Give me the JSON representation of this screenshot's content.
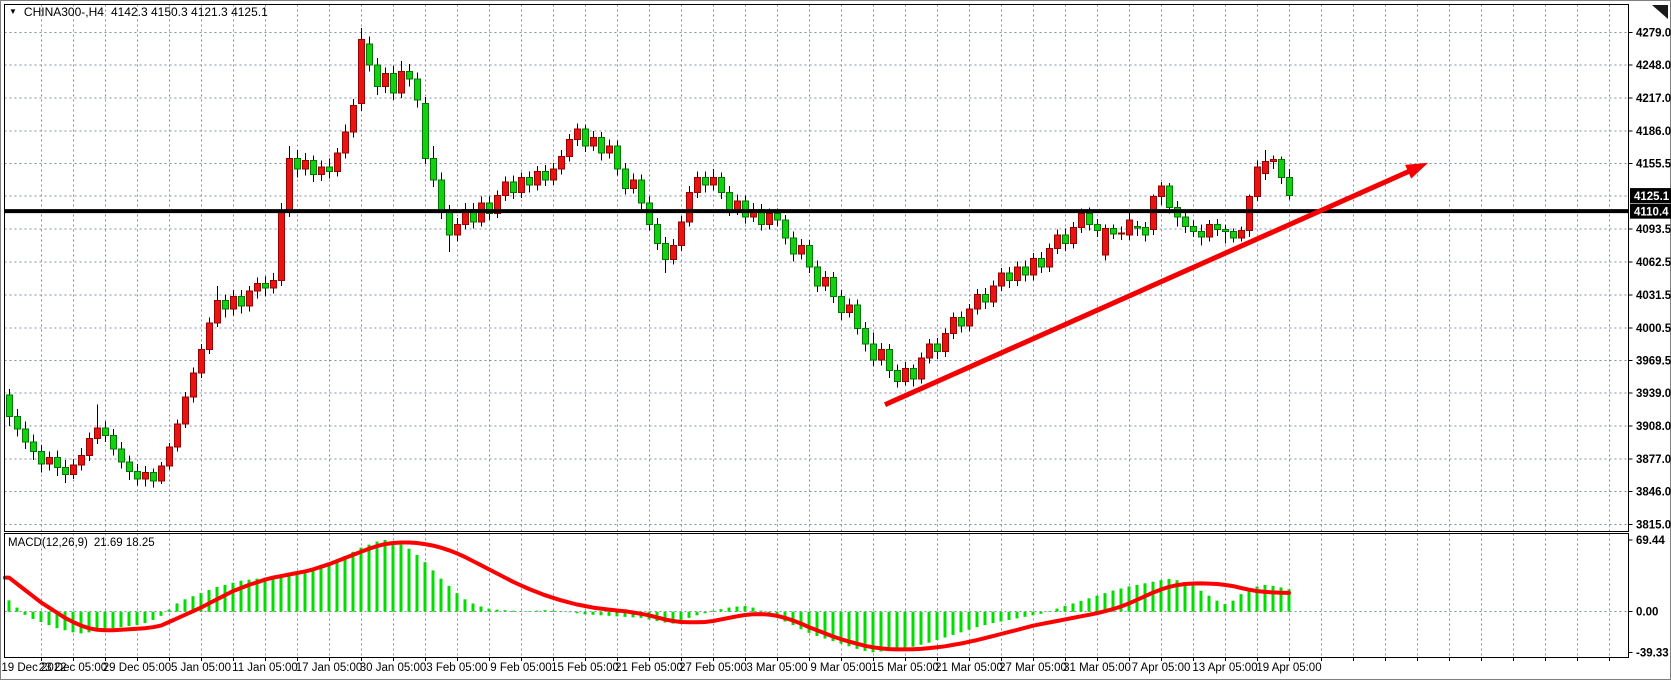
{
  "chart": {
    "dropdown_icon": "▼",
    "title_text": "CHINA300-,H4",
    "ohlc_text": "4142.3 4150.3 4121.3 4125.1"
  },
  "macd_panel": {
    "label": "MACD(12,26,9)",
    "values_text": "21.69 18.25"
  },
  "chart_data": {
    "type": "candlestick",
    "symbol": "CHINA300-",
    "timeframe": "H4",
    "last_open": 4142.3,
    "last_high": 4150.3,
    "last_low": 4121.3,
    "last_close": 4125.1,
    "current_price": 4125.1,
    "hline_price": 4110.4,
    "price_ticks": [
      4279.0,
      4248.0,
      4217.0,
      4186.0,
      4155.5,
      4093.5,
      4062.5,
      4031.5,
      4000.5,
      3969.5,
      3939.0,
      3908.0,
      3877.0,
      3846.0,
      3815.0
    ],
    "extra_gridline_price": 4124.5,
    "x_labels": [
      "19 Dec 2022",
      "23 Dec 05:00",
      "29 Dec 05:00",
      "5 Jan 05:00",
      "11 Jan 05:00",
      "17 Jan 05:00",
      "30 Jan 05:00",
      "3 Feb 05:00",
      "9 Feb 05:00",
      "15 Feb 05:00",
      "21 Feb 05:00",
      "27 Feb 05:00",
      "3 Mar 05:00",
      "9 Mar 05:00",
      "15 Mar 05:00",
      "21 Mar 05:00",
      "27 Mar 05:00",
      "31 Mar 05:00",
      "7 Apr 05:00",
      "13 Apr 05:00",
      "19 Apr 05:00"
    ],
    "candles": [
      [
        3937,
        3943,
        3908,
        3917
      ],
      [
        3917,
        3924,
        3898,
        3905
      ],
      [
        3905,
        3912,
        3886,
        3893
      ],
      [
        3893,
        3900,
        3876,
        3884
      ],
      [
        3884,
        3890,
        3864,
        3872
      ],
      [
        3872,
        3884,
        3866,
        3878
      ],
      [
        3878,
        3885,
        3861,
        3869
      ],
      [
        3869,
        3876,
        3854,
        3862
      ],
      [
        3862,
        3877,
        3858,
        3871
      ],
      [
        3871,
        3887,
        3866,
        3880
      ],
      [
        3880,
        3902,
        3875,
        3896
      ],
      [
        3896,
        3928,
        3891,
        3906
      ],
      [
        3906,
        3912,
        3893,
        3899
      ],
      [
        3899,
        3905,
        3880,
        3886
      ],
      [
        3886,
        3893,
        3868,
        3874
      ],
      [
        3874,
        3880,
        3857,
        3865
      ],
      [
        3865,
        3872,
        3852,
        3858
      ],
      [
        3858,
        3870,
        3851,
        3864
      ],
      [
        3864,
        3868,
        3850,
        3856
      ],
      [
        3856,
        3874,
        3853,
        3870
      ],
      [
        3870,
        3892,
        3867,
        3888
      ],
      [
        3888,
        3914,
        3884,
        3910
      ],
      [
        3910,
        3940,
        3906,
        3935
      ],
      [
        3935,
        3963,
        3930,
        3958
      ],
      [
        3958,
        3985,
        3953,
        3980
      ],
      [
        3980,
        4010,
        3976,
        4005
      ],
      [
        4005,
        4040,
        4001,
        4026
      ],
      [
        4026,
        4032,
        4010,
        4018
      ],
      [
        4018,
        4036,
        4012,
        4030
      ],
      [
        4030,
        4036,
        4014,
        4021
      ],
      [
        4021,
        4040,
        4016,
        4035
      ],
      [
        4035,
        4048,
        4028,
        4042
      ],
      [
        4042,
        4049,
        4030,
        4038
      ],
      [
        4038,
        4052,
        4033,
        4045
      ],
      [
        4045,
        4118,
        4040,
        4110
      ],
      [
        4110,
        4172,
        4105,
        4160
      ],
      [
        4160,
        4168,
        4142,
        4150
      ],
      [
        4150,
        4165,
        4144,
        4158
      ],
      [
        4158,
        4163,
        4138,
        4145
      ],
      [
        4145,
        4158,
        4139,
        4152
      ],
      [
        4152,
        4160,
        4141,
        4148
      ],
      [
        4148,
        4170,
        4143,
        4165
      ],
      [
        4165,
        4192,
        4160,
        4185
      ],
      [
        4185,
        4216,
        4180,
        4210
      ],
      [
        4212,
        4283,
        4205,
        4272
      ],
      [
        4268,
        4275,
        4242,
        4248
      ],
      [
        4248,
        4255,
        4220,
        4228
      ],
      [
        4228,
        4246,
        4222,
        4240
      ],
      [
        4240,
        4247,
        4215,
        4222
      ],
      [
        4222,
        4252,
        4217,
        4242
      ],
      [
        4242,
        4249,
        4228,
        4235
      ],
      [
        4235,
        4241,
        4208,
        4215
      ],
      [
        4212,
        4218,
        4155,
        4160
      ],
      [
        4160,
        4172,
        4133,
        4140
      ],
      [
        4140,
        4147,
        4103,
        4110
      ],
      [
        4110,
        4116,
        4072,
        4088
      ],
      [
        4088,
        4104,
        4082,
        4098
      ],
      [
        4098,
        4118,
        4093,
        4112
      ],
      [
        4112,
        4118,
        4094,
        4100
      ],
      [
        4100,
        4124,
        4096,
        4118
      ],
      [
        4118,
        4124,
        4102,
        4108
      ],
      [
        4108,
        4130,
        4104,
        4125
      ],
      [
        4125,
        4143,
        4120,
        4138
      ],
      [
        4138,
        4144,
        4122,
        4128
      ],
      [
        4128,
        4147,
        4123,
        4142
      ],
      [
        4142,
        4148,
        4128,
        4135
      ],
      [
        4135,
        4153,
        4130,
        4148
      ],
      [
        4148,
        4154,
        4134,
        4140
      ],
      [
        4140,
        4156,
        4135,
        4150
      ],
      [
        4150,
        4168,
        4145,
        4162
      ],
      [
        4162,
        4183,
        4157,
        4178
      ],
      [
        4178,
        4193,
        4172,
        4188
      ],
      [
        4188,
        4192,
        4166,
        4172
      ],
      [
        4172,
        4186,
        4167,
        4180
      ],
      [
        4180,
        4185,
        4158,
        4165
      ],
      [
        4165,
        4178,
        4160,
        4172
      ],
      [
        4172,
        4177,
        4144,
        4150
      ],
      [
        4150,
        4156,
        4126,
        4132
      ],
      [
        4132,
        4146,
        4127,
        4140
      ],
      [
        4140,
        4145,
        4112,
        4118
      ],
      [
        4118,
        4124,
        4092,
        4098
      ],
      [
        4098,
        4104,
        4074,
        4080
      ],
      [
        4080,
        4086,
        4052,
        4065
      ],
      [
        4065,
        4084,
        4060,
        4078
      ],
      [
        4078,
        4106,
        4073,
        4100
      ],
      [
        4100,
        4134,
        4096,
        4128
      ],
      [
        4128,
        4148,
        4123,
        4142
      ],
      [
        4142,
        4148,
        4128,
        4135
      ],
      [
        4135,
        4150,
        4130,
        4142
      ],
      [
        4142,
        4147,
        4122,
        4128
      ],
      [
        4128,
        4134,
        4106,
        4112
      ],
      [
        4112,
        4126,
        4107,
        4120
      ],
      [
        4120,
        4125,
        4099,
        4105
      ],
      [
        4105,
        4118,
        4100,
        4112
      ],
      [
        4112,
        4117,
        4092,
        4098
      ],
      [
        4098,
        4113,
        4093,
        4108
      ],
      [
        4108,
        4113,
        4096,
        4102
      ],
      [
        4102,
        4107,
        4079,
        4085
      ],
      [
        4085,
        4091,
        4063,
        4070
      ],
      [
        4070,
        4084,
        4065,
        4078
      ],
      [
        4078,
        4083,
        4052,
        4058
      ],
      [
        4058,
        4064,
        4034,
        4040
      ],
      [
        4040,
        4054,
        4035,
        4048
      ],
      [
        4048,
        4053,
        4024,
        4030
      ],
      [
        4030,
        4036,
        4008,
        4015
      ],
      [
        4015,
        4028,
        4010,
        4022
      ],
      [
        4022,
        4027,
        3994,
        4000
      ],
      [
        4000,
        4006,
        3978,
        3985
      ],
      [
        3985,
        3996,
        3964,
        3970
      ],
      [
        3970,
        3986,
        3965,
        3980
      ],
      [
        3980,
        3985,
        3953,
        3960
      ],
      [
        3960,
        3966,
        3944,
        3950
      ],
      [
        3950,
        3968,
        3946,
        3962
      ],
      [
        3962,
        3966,
        3945,
        3952
      ],
      [
        3952,
        3977,
        3948,
        3972
      ],
      [
        3972,
        3990,
        3967,
        3985
      ],
      [
        3985,
        3991,
        3971,
        3978
      ],
      [
        3978,
        4000,
        3973,
        3995
      ],
      [
        3995,
        4015,
        3990,
        4010
      ],
      [
        4010,
        4016,
        3996,
        4002
      ],
      [
        4002,
        4023,
        3997,
        4018
      ],
      [
        4018,
        4037,
        4013,
        4032
      ],
      [
        4032,
        4038,
        4018,
        4025
      ],
      [
        4025,
        4045,
        4020,
        4040
      ],
      [
        4040,
        4057,
        4035,
        4052
      ],
      [
        4052,
        4058,
        4038,
        4045
      ],
      [
        4045,
        4063,
        4040,
        4058
      ],
      [
        4058,
        4064,
        4044,
        4050
      ],
      [
        4050,
        4071,
        4045,
        4066
      ],
      [
        4066,
        4072,
        4052,
        4058
      ],
      [
        4058,
        4080,
        4053,
        4075
      ],
      [
        4075,
        4093,
        4070,
        4088
      ],
      [
        4088,
        4094,
        4073,
        4080
      ],
      [
        4080,
        4100,
        4075,
        4095
      ],
      [
        4095,
        4113,
        4090,
        4108
      ],
      [
        4108,
        4114,
        4092,
        4098
      ],
      [
        4098,
        4103,
        4086,
        4092
      ],
      [
        4069,
        4098,
        4064,
        4094
      ],
      [
        4094,
        4098,
        4084,
        4089
      ],
      [
        4089,
        4096,
        4083,
        4090
      ],
      [
        4088,
        4109,
        4083,
        4102
      ],
      [
        4096,
        4101,
        4087,
        4095
      ],
      [
        4095,
        4100,
        4082,
        4088
      ],
      [
        4093,
        4126,
        4088,
        4124
      ],
      [
        4124,
        4138,
        4116,
        4134
      ],
      [
        4134,
        4137,
        4108,
        4114
      ],
      [
        4114,
        4120,
        4096,
        4105
      ],
      [
        4105,
        4110,
        4090,
        4096
      ],
      [
        4096,
        4102,
        4086,
        4091
      ],
      [
        4091,
        4098,
        4078,
        4086
      ],
      [
        4086,
        4102,
        4082,
        4098
      ],
      [
        4098,
        4103,
        4087,
        4093
      ],
      [
        4093,
        4098,
        4080,
        4091
      ],
      [
        4091,
        4094,
        4081,
        4085
      ],
      [
        4085,
        4096,
        4082,
        4092
      ],
      [
        4092,
        4126,
        4086,
        4124
      ],
      [
        4124,
        4158,
        4120,
        4152
      ],
      [
        4146,
        4168,
        4140,
        4157
      ],
      [
        4157,
        4163,
        4150,
        4159
      ],
      [
        4159,
        4162,
        4136,
        4142
      ],
      [
        4142.3,
        4150.3,
        4121.3,
        4125.1
      ]
    ],
    "macd": {
      "label": "MACD(12,26,9)",
      "current_macd": 21.69,
      "current_signal": 18.25,
      "ticks": [
        69.44,
        0.0,
        -39.33
      ],
      "histogram": [
        11,
        4,
        -3,
        -7,
        -10,
        -13,
        -16,
        -18,
        -20,
        -21,
        -20,
        -19,
        -17,
        -16,
        -15,
        -14,
        -13,
        -11,
        -8,
        -4,
        2,
        8,
        12,
        15,
        18,
        21,
        24,
        26,
        28,
        30,
        31,
        32,
        33,
        33.5,
        34,
        35,
        36,
        38,
        41,
        44,
        47,
        50,
        54,
        58,
        62,
        65,
        68,
        69.44,
        68,
        65,
        61,
        55,
        48,
        40,
        32,
        25,
        18,
        12,
        8,
        5,
        3,
        2,
        1.5,
        1,
        0.5,
        0.5,
        1,
        1.5,
        1,
        0.5,
        -0.5,
        -1.5,
        -2.5,
        -3,
        -3.5,
        -4,
        -4.5,
        -5,
        -5.5,
        -6,
        -7.5,
        -9,
        -10.5,
        -11.5,
        -9,
        -6,
        -3.5,
        -1.5,
        1,
        2.5,
        4,
        5,
        5.5,
        4,
        1,
        -3,
        -6,
        -9.5,
        -13,
        -17,
        -20.5,
        -23.5,
        -26,
        -28.5,
        -31,
        -33.5,
        -36,
        -38,
        -39.33,
        -38.5,
        -37.5,
        -36.5,
        -35.5,
        -34,
        -32,
        -30,
        -27.5,
        -25,
        -22.5,
        -20,
        -17.5,
        -15,
        -13,
        -11,
        -9.5,
        -8,
        -6.5,
        -5,
        -3.5,
        -2,
        0.5,
        3,
        5.5,
        8,
        10.5,
        13,
        15.5,
        18,
        20.5,
        22.5,
        24.5,
        26,
        27.5,
        29,
        30.5,
        31.7,
        30.5,
        28.5,
        25.5,
        20.3,
        15.5,
        10.7,
        7.4,
        10.7,
        17,
        22,
        24.4,
        26,
        25,
        23.5,
        21.69
      ],
      "signal": [
        33,
        27,
        21,
        15,
        9,
        4,
        -1,
        -6,
        -10,
        -13.5,
        -16,
        -17.5,
        -18,
        -18,
        -17.5,
        -17,
        -16.5,
        -16,
        -15,
        -13.5,
        -10,
        -6.5,
        -3,
        0.5,
        4,
        8,
        12,
        16,
        20,
        23,
        26,
        28.5,
        31,
        33,
        34.5,
        36,
        37.5,
        39,
        41,
        43.5,
        46,
        49,
        52,
        55,
        58,
        61,
        63.5,
        65.5,
        66.5,
        67,
        67,
        66.5,
        65.5,
        64,
        62,
        59.5,
        56.5,
        53,
        49,
        45,
        41,
        37,
        33,
        29,
        25.5,
        22,
        19,
        16,
        13.5,
        11,
        9,
        7,
        5.5,
        4,
        3,
        2,
        1.2,
        0.5,
        -0.8,
        -2,
        -3.5,
        -5.5,
        -7.5,
        -9,
        -10,
        -10.3,
        -10.3,
        -10,
        -9,
        -7.5,
        -6,
        -4.5,
        -3.2,
        -2.5,
        -2.3,
        -2.8,
        -4,
        -6,
        -8.5,
        -11.5,
        -15,
        -18,
        -21,
        -24,
        -26.5,
        -29,
        -31,
        -33,
        -34.5,
        -35.5,
        -36.2,
        -36.5,
        -36.5,
        -36.3,
        -36,
        -35.3,
        -34.5,
        -33.5,
        -32.2,
        -30.8,
        -29.2,
        -27.5,
        -25.6,
        -23.6,
        -21.6,
        -19.6,
        -17.6,
        -15.6,
        -13.6,
        -12,
        -10.5,
        -9,
        -7.5,
        -6,
        -4.5,
        -3,
        -1.5,
        0.5,
        2.5,
        5,
        8,
        11.5,
        15,
        18.5,
        21.5,
        24,
        25.8,
        26.8,
        27.3,
        27.4,
        27.2,
        26.8,
        26,
        24.8,
        23,
        21.3,
        20,
        19.2,
        18.7,
        18.4,
        18.25
      ]
    },
    "trend_arrow": {
      "from_bar": 109.5,
      "from_price": 3928,
      "to_bar": 177.4,
      "to_price": 4156
    },
    "colors": {
      "bull": "#e81414",
      "bull_border": "#990000",
      "bear": "#12d012",
      "bear_border": "#007700",
      "wick": "#000000",
      "grid": "#7e8fa6",
      "hist": "#00dd00",
      "signal": "#ff0000",
      "arrow": "#f40000",
      "axis_text": "#000000",
      "price_box_bg": "#000000",
      "price_box_text": "#ffffff",
      "hline": "#000000",
      "frame": "#808080",
      "panel_border": "#000000"
    }
  }
}
